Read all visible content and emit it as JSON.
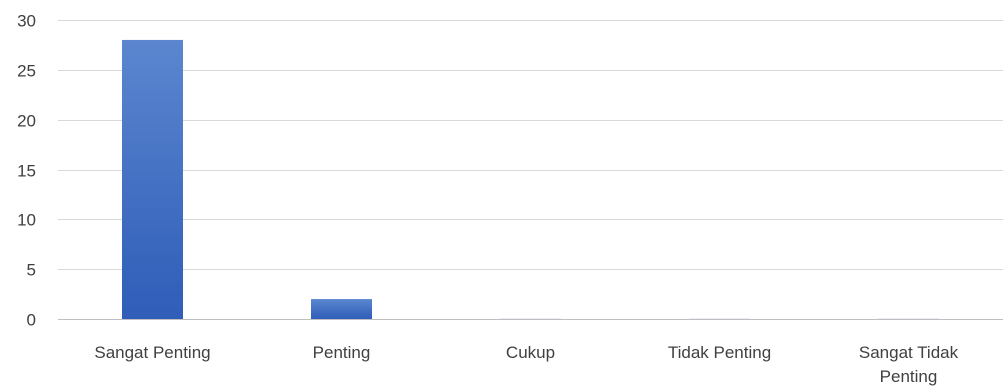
{
  "chart_data": {
    "type": "bar",
    "categories": [
      "Sangat Penting",
      "Penting",
      "Cukup",
      "Tidak Penting",
      "Sangat Tidak Penting"
    ],
    "category_lines": [
      [
        "Sangat Penting"
      ],
      [
        "Penting"
      ],
      [
        "Cukup"
      ],
      [
        "Tidak Penting"
      ],
      [
        "Sangat Tidak",
        "Penting"
      ]
    ],
    "values": [
      28,
      2,
      0,
      0,
      0
    ],
    "title": "",
    "xlabel": "",
    "ylabel": "",
    "ylim": [
      0,
      30
    ],
    "yticks": [
      0,
      5,
      10,
      15,
      20,
      25,
      30
    ],
    "grid": true,
    "legend": "none",
    "colors": {
      "bar_top": "#5B86CF",
      "bar_bottom": "#2F5DB8",
      "grid": "#D9D9D9",
      "axis": "#BFBFBF",
      "text": "#404040"
    }
  }
}
